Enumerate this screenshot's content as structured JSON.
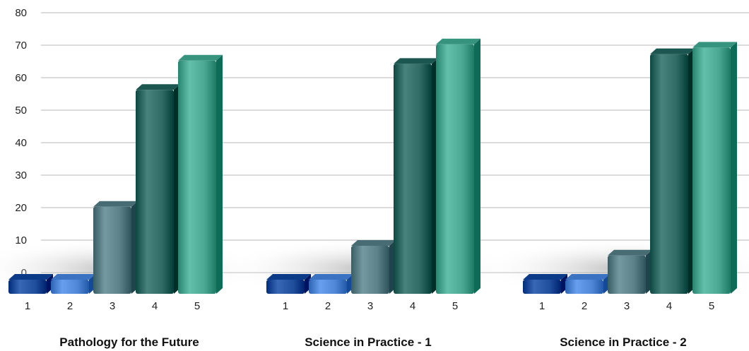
{
  "chart_data": {
    "type": "bar",
    "ylim": [
      0,
      80
    ],
    "y_ticks": [
      "0",
      "10",
      "20",
      "30",
      "40",
      "50",
      "60",
      "70",
      "80"
    ],
    "grid": true,
    "bar_colors": [
      "#1f4f9c",
      "#4f86d6",
      "#5c8087",
      "#2f6b64",
      "#4aa792"
    ],
    "groups": [
      {
        "title": "Pathology for the Future",
        "categories": [
          "1",
          "2",
          "3",
          "4",
          "5"
        ],
        "values": [
          0,
          0,
          22,
          58,
          67
        ]
      },
      {
        "title": "Science in Practice - 1",
        "categories": [
          "1",
          "2",
          "3",
          "4",
          "5"
        ],
        "values": [
          0,
          0,
          10,
          66,
          72
        ]
      },
      {
        "title": "Science in Practice - 2",
        "categories": [
          "1",
          "2",
          "3",
          "4",
          "5"
        ],
        "values": [
          0,
          0,
          7,
          69,
          71
        ]
      }
    ]
  }
}
